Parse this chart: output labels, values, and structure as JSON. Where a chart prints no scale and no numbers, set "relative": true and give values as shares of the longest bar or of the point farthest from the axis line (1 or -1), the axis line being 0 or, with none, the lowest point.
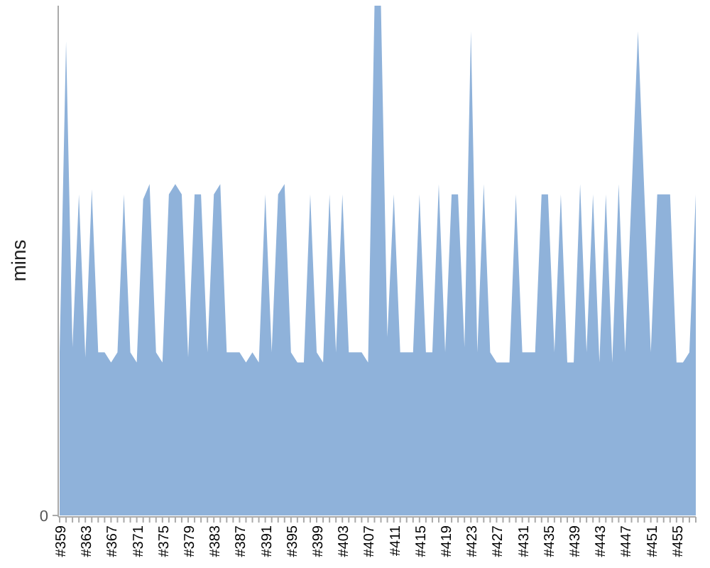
{
  "chart_data": {
    "type": "area",
    "ylabel": "mins",
    "relative": true,
    "annotations": [
      "0"
    ],
    "color": "#8fb2da",
    "categories": [
      "#359",
      null,
      null,
      null,
      "#363",
      null,
      null,
      null,
      "#367",
      null,
      null,
      null,
      "#371",
      null,
      null,
      null,
      "#375",
      null,
      null,
      null,
      "#379",
      null,
      null,
      null,
      "#383",
      null,
      null,
      null,
      "#387",
      null,
      null,
      null,
      "#391",
      null,
      null,
      null,
      "#395",
      null,
      null,
      null,
      "#399",
      null,
      null,
      null,
      "#403",
      null,
      null,
      null,
      "#407",
      null,
      null,
      null,
      "#411",
      null,
      null,
      null,
      "#415",
      null,
      null,
      null,
      "#419",
      null,
      null,
      null,
      "#423",
      null,
      null,
      null,
      "#427",
      null,
      null,
      null,
      "#431",
      null,
      null,
      null,
      "#435",
      null,
      null,
      null,
      "#439",
      null,
      null,
      null,
      "#443",
      null,
      null,
      null,
      "#447",
      null,
      null,
      null,
      "#451",
      null,
      null,
      null,
      "#455",
      null,
      null,
      null
    ],
    "values": [
      0.32,
      0.93,
      0.33,
      0.63,
      0.31,
      0.64,
      0.32,
      0.32,
      0.3,
      0.32,
      0.63,
      0.32,
      0.3,
      0.62,
      0.65,
      0.32,
      0.3,
      0.63,
      0.65,
      0.63,
      0.31,
      0.63,
      0.63,
      0.32,
      0.63,
      0.65,
      0.32,
      0.32,
      0.32,
      0.3,
      0.32,
      0.3,
      0.63,
      0.32,
      0.63,
      0.65,
      0.32,
      0.3,
      0.3,
      0.63,
      0.32,
      0.3,
      0.63,
      0.32,
      0.63,
      0.32,
      0.32,
      0.32,
      0.3,
      1,
      1,
      0.35,
      0.63,
      0.32,
      0.32,
      0.32,
      0.63,
      0.32,
      0.32,
      0.65,
      0.32,
      0.63,
      0.63,
      0.33,
      0.95,
      0.32,
      0.65,
      0.32,
      0.3,
      0.3,
      0.3,
      0.63,
      0.32,
      0.32,
      0.32,
      0.63,
      0.63,
      0.32,
      0.63,
      0.3,
      0.3,
      0.65,
      0.32,
      0.63,
      0.3,
      0.63,
      0.3,
      0.65,
      0.32,
      0.63,
      0.95,
      0.63,
      0.32,
      0.63,
      0.63,
      0.63,
      0.3,
      0.3,
      0.32,
      0.63
    ]
  }
}
